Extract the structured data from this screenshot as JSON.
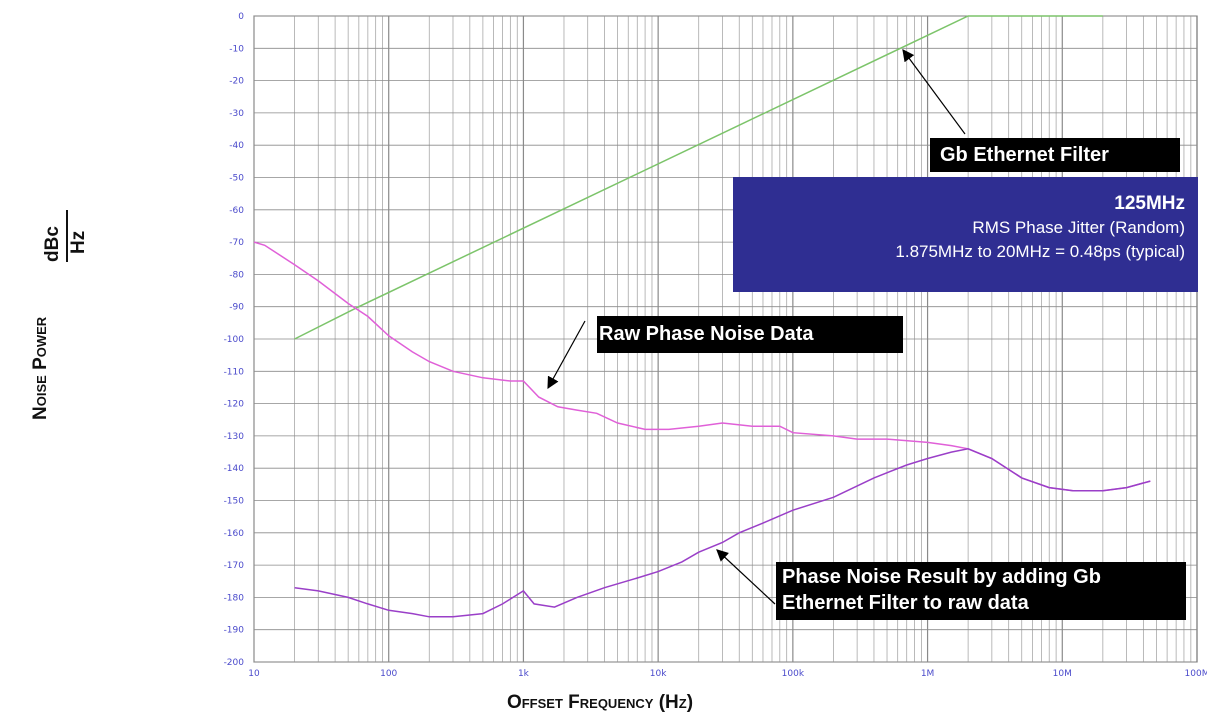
{
  "chart_data": {
    "type": "line",
    "xscale": "log",
    "xlim": [
      10,
      100000000
    ],
    "ylim": [
      -200,
      0
    ],
    "grid": true,
    "xlabel": "Offset Frequency (Hz)",
    "ylabel": "Noise Power",
    "ylabel_unit_num": "dBc",
    "ylabel_unit_den": "Hz",
    "x_ticks": [
      {
        "value": 10,
        "label": "10"
      },
      {
        "value": 100,
        "label": "100"
      },
      {
        "value": 1000,
        "label": "1k"
      },
      {
        "value": 10000,
        "label": "10k"
      },
      {
        "value": 100000,
        "label": "100k"
      },
      {
        "value": 1000000,
        "label": "1M"
      },
      {
        "value": 10000000,
        "label": "10M"
      },
      {
        "value": 100000000,
        "label": "100M"
      }
    ],
    "y_ticks": [
      0,
      -10,
      -20,
      -30,
      -40,
      -50,
      -60,
      -70,
      -80,
      -90,
      -100,
      -110,
      -120,
      -130,
      -140,
      -150,
      -160,
      -170,
      -180,
      -190,
      -200
    ],
    "series": [
      {
        "color": "#7cc46a",
        "points": [
          [
            20,
            -100
          ],
          [
            60,
            -90
          ],
          [
            2000000,
            0
          ],
          [
            20000000,
            0
          ]
        ]
      },
      {
        "color": "#e060d8",
        "points": [
          [
            10,
            -70
          ],
          [
            12,
            -71
          ],
          [
            20,
            -77
          ],
          [
            30,
            -82
          ],
          [
            50,
            -89
          ],
          [
            70,
            -93
          ],
          [
            100,
            -99
          ],
          [
            150,
            -104
          ],
          [
            200,
            -107
          ],
          [
            300,
            -110
          ],
          [
            500,
            -112
          ],
          [
            800,
            -113
          ],
          [
            1000,
            -113
          ],
          [
            1300,
            -118
          ],
          [
            1800,
            -121
          ],
          [
            2500,
            -122
          ],
          [
            3500,
            -123
          ],
          [
            5000,
            -126
          ],
          [
            8000,
            -128
          ],
          [
            12000,
            -128
          ],
          [
            20000,
            -127
          ],
          [
            30000,
            -126
          ],
          [
            50000,
            -127
          ],
          [
            80000,
            -127
          ],
          [
            100000,
            -129
          ],
          [
            200000,
            -130
          ],
          [
            300000,
            -131
          ],
          [
            500000,
            -131
          ],
          [
            1000000,
            -132
          ],
          [
            1500000,
            -133
          ],
          [
            2000000,
            -134
          ],
          [
            3000000,
            -137
          ],
          [
            5000000,
            -143
          ],
          [
            8000000,
            -146
          ],
          [
            12000000,
            -147
          ],
          [
            20000000,
            -147
          ],
          [
            30000000,
            -146
          ],
          [
            45000000,
            -144
          ]
        ]
      },
      {
        "color": "#9a3fc8",
        "points": [
          [
            20,
            -177
          ],
          [
            30,
            -178
          ],
          [
            50,
            -180
          ],
          [
            70,
            -182
          ],
          [
            100,
            -184
          ],
          [
            150,
            -185
          ],
          [
            200,
            -186
          ],
          [
            300,
            -186
          ],
          [
            500,
            -185
          ],
          [
            700,
            -182
          ],
          [
            1000,
            -178
          ],
          [
            1200,
            -182
          ],
          [
            1700,
            -183
          ],
          [
            2500,
            -180
          ],
          [
            4000,
            -177
          ],
          [
            7000,
            -174
          ],
          [
            10000,
            -172
          ],
          [
            15000,
            -169
          ],
          [
            20000,
            -166
          ],
          [
            30000,
            -163
          ],
          [
            40000,
            -160
          ],
          [
            60000,
            -157
          ],
          [
            100000,
            -153
          ],
          [
            200000,
            -149
          ],
          [
            400000,
            -143
          ],
          [
            700000,
            -139
          ],
          [
            1000000,
            -137
          ],
          [
            1500000,
            -135
          ],
          [
            2000000,
            -134
          ],
          [
            3000000,
            -137
          ],
          [
            5000000,
            -143
          ],
          [
            8000000,
            -146
          ],
          [
            12000000,
            -147
          ],
          [
            20000000,
            -147
          ],
          [
            30000000,
            -146
          ],
          [
            45000000,
            -144
          ]
        ]
      }
    ],
    "annotations": [
      {
        "text": "Gb Ethernet Filter"
      },
      {
        "text": "Raw Phase Noise Data"
      },
      {
        "text": "Phase Noise Result by adding Gb Ethernet Filter to raw data"
      }
    ],
    "info_box": {
      "frequency": "125MHz",
      "line1": "RMS Phase Jitter (Random)",
      "line2": "1.875MHz to 20MHz = 0.48ps (typical)",
      "color": "#2f2e92"
    }
  }
}
